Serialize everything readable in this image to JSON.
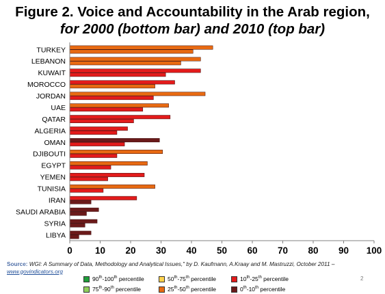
{
  "title_line1": "Figure 2. Voice and Accountability in the Arab region,",
  "title_line2": "for 2000 (bottom bar) and 2010 (top bar)",
  "source": {
    "label": "Source:",
    "text_a": " WGI: ",
    "text_b": "A Summary of Data, Methodology and Analytical Issues",
    "text_c": ",\" by D. Kaufmann, A.Kraay and M. Mastruzzi, October 2011 –",
    "link": "www.govindicators.org"
  },
  "page_number": "2",
  "legend": [
    {
      "label_a": "90",
      "sup_a": "th",
      "mid": "-100",
      "sup_b": "th",
      "tail": " percentile",
      "color": "#1f9e3a"
    },
    {
      "label_a": "50",
      "sup_a": "th",
      "mid": "-75",
      "sup_b": "th",
      "tail": " percentile",
      "color": "#ffd34d"
    },
    {
      "label_a": "10",
      "sup_a": "th",
      "mid": "-25",
      "sup_b": "th",
      "tail": " percentile",
      "color": "#e31b1b"
    },
    {
      "label_a": "75",
      "sup_a": "th",
      "mid": "-90",
      "sup_b": "th",
      "tail": " percentile",
      "color": "#8fce5c"
    },
    {
      "label_a": "25",
      "sup_a": "th",
      "mid": "-50",
      "sup_b": "th",
      "tail": " percentile",
      "color": "#e86a12"
    },
    {
      "label_a": "0",
      "sup_a": "th",
      "mid": "-10",
      "sup_b": "th",
      "tail": " percentile",
      "color": "#6b1a1a"
    }
  ],
  "chart_data": {
    "type": "bar",
    "orientation": "horizontal",
    "xlim": [
      0,
      100
    ],
    "xticks": [
      0,
      10,
      20,
      30,
      40,
      50,
      60,
      70,
      80,
      90,
      100
    ],
    "grid": false,
    "categories": [
      "TURKEY",
      "LEBANON",
      "KUWAIT",
      "MOROCCO",
      "JORDAN",
      "UAE",
      "QATAR",
      "ALGERIA",
      "OMAN",
      "DJIBOUTI",
      "EGYPT",
      "YEMEN",
      "TUNISIA",
      "IRAN",
      "SAUDI ARABIA",
      "SYRIA",
      "LIBYA"
    ],
    "series": [
      {
        "values": [
          47.0,
          43.0,
          43.0,
          34.5,
          44.5,
          32.5,
          33.0,
          19.0,
          29.5,
          30.5,
          25.5,
          24.5,
          28.0,
          22.0,
          9.5,
          9.0,
          7.0
        ],
        "colors": [
          "#e86a12",
          "#e86a12",
          "#e31b1b",
          "#e31b1b",
          "#e86a12",
          "#e86a12",
          "#e31b1b",
          "#e31b1b",
          "#6b1a1a",
          "#e86a12",
          "#e86a12",
          "#e31b1b",
          "#e86a12",
          "#e31b1b",
          "#6b1a1a",
          "#6b1a1a",
          "#6b1a1a"
        ]
      },
      {
        "values": [
          40.5,
          36.5,
          31.5,
          28.0,
          27.5,
          24.0,
          21.0,
          15.5,
          18.0,
          15.5,
          13.5,
          12.5,
          11.0,
          7.0,
          5.5,
          5.0,
          3.0
        ],
        "colors": [
          "#e86a12",
          "#e86a12",
          "#e31b1b",
          "#e86a12",
          "#e31b1b",
          "#e31b1b",
          "#e31b1b",
          "#e31b1b",
          "#e31b1b",
          "#e31b1b",
          "#e31b1b",
          "#e31b1b",
          "#e31b1b",
          "#6b1a1a",
          "#6b1a1a",
          "#6b1a1a",
          "#6b1a1a"
        ]
      }
    ]
  }
}
